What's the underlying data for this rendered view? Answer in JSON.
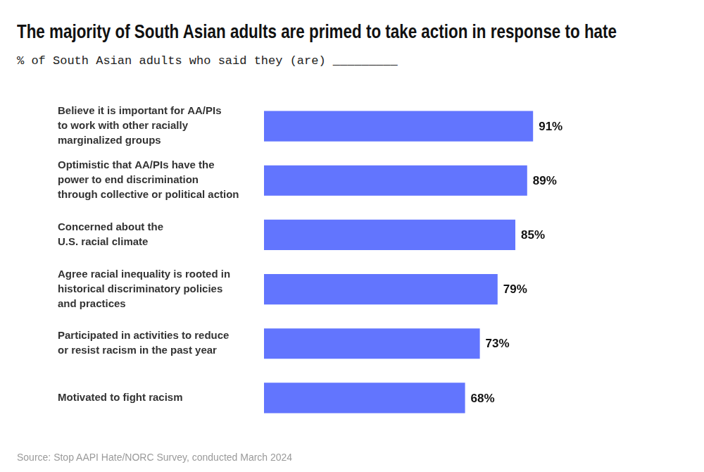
{
  "chart_data": {
    "type": "bar",
    "orientation": "horizontal",
    "title": "The majority of South Asian adults are primed to take action in response to hate",
    "subtitle": "% of South Asian adults who said they (are) _________",
    "source": "Source: Stop AAPI Hate/NORC Survey, conducted March 2024",
    "categories": [
      [
        "Believe it is important for AA/PIs",
        "to work with other racially",
        "marginalized groups"
      ],
      [
        "Optimistic that AA/PIs have the",
        "power to end discrimination",
        "through collective or political action"
      ],
      [
        "Concerned about the",
        "U.S. racial climate"
      ],
      [
        "Agree racial inequality is rooted in",
        "historical discriminatory policies",
        "and practices"
      ],
      [
        "Participated in activities to reduce",
        "or resist racism in the past year"
      ],
      [
        "Motivated to fight racism"
      ]
    ],
    "values": [
      91,
      89,
      85,
      79,
      73,
      68
    ],
    "value_labels": [
      "91%",
      "89%",
      "85%",
      "79%",
      "73%",
      "68%"
    ],
    "data_labels": true,
    "color": "#6275fe",
    "xlim": [
      0,
      100
    ],
    "grid": false,
    "tick_labels": "y"
  }
}
